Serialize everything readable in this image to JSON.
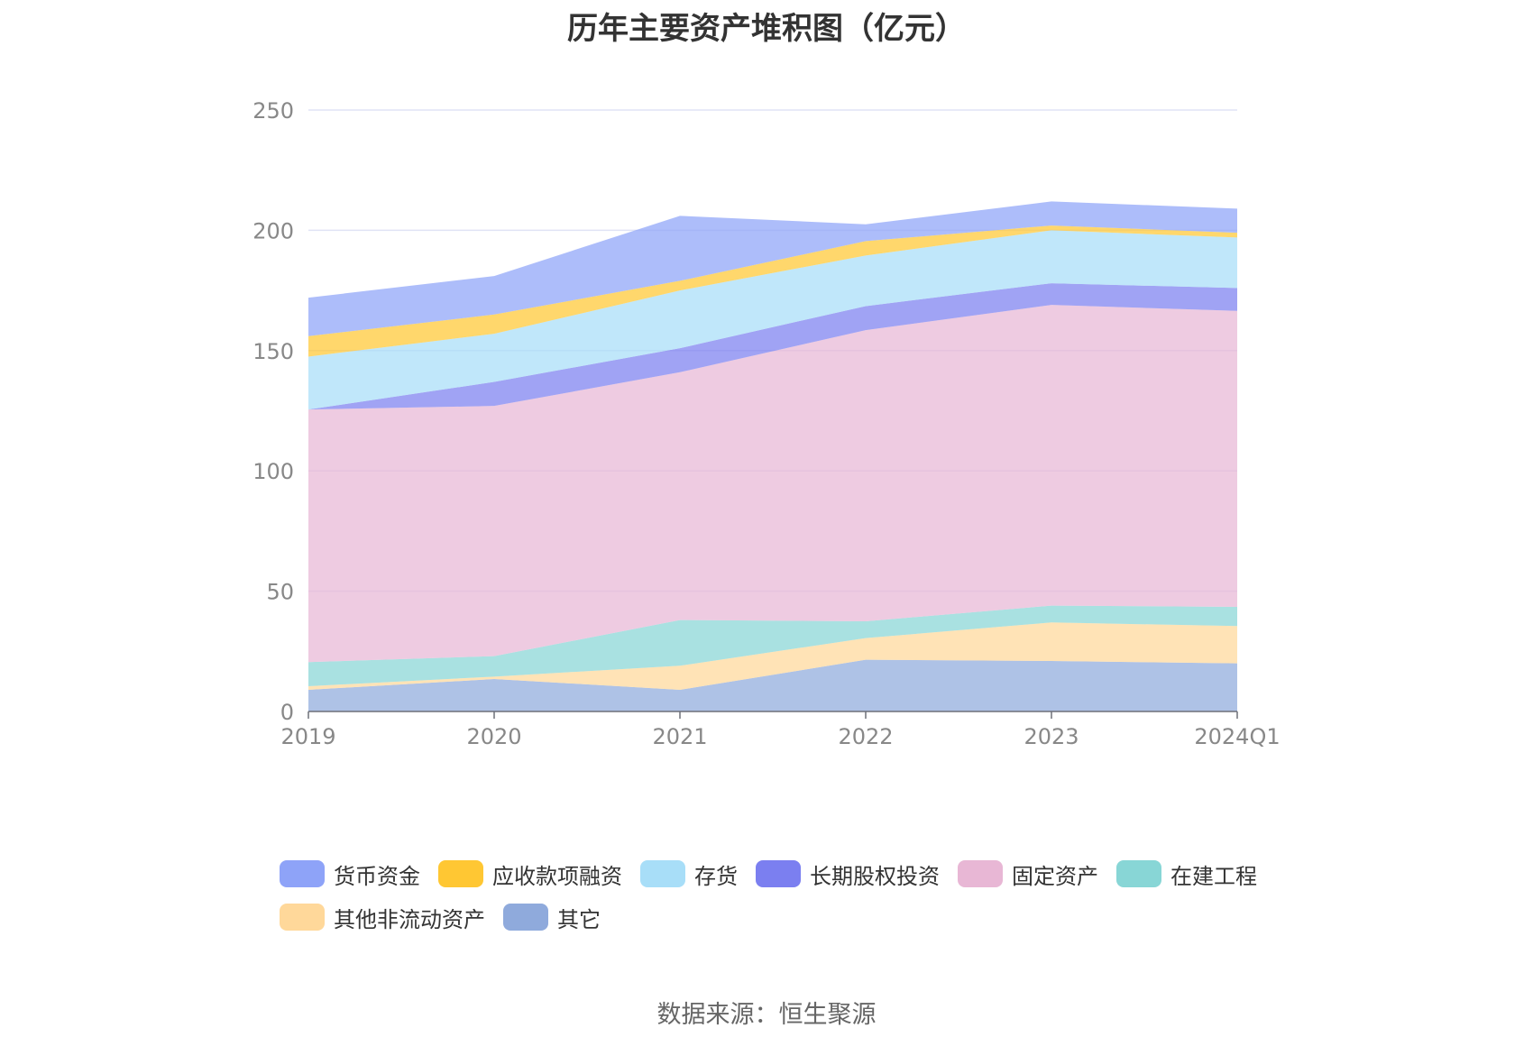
{
  "chart_data": {
    "type": "area",
    "stacked": true,
    "title": "历年主要资产堆积图（亿元）",
    "categories": [
      "2019",
      "2020",
      "2021",
      "2022",
      "2023",
      "2024Q1"
    ],
    "ylim": [
      0,
      250
    ],
    "yticks": [
      "0",
      "50",
      "100",
      "150",
      "200",
      "250"
    ],
    "grid": true,
    "legend_position": "bottom",
    "series": [
      {
        "name": "其它",
        "color": "#8faadc",
        "values": [
          9,
          13.5,
          9,
          21.5,
          21,
          20
        ]
      },
      {
        "name": "其他非流动资产",
        "color": "#ffd89a",
        "values": [
          1.5,
          1,
          10,
          9,
          16,
          15.5
        ]
      },
      {
        "name": "在建工程",
        "color": "#88d6d6",
        "values": [
          10,
          8.5,
          19,
          7,
          7,
          8
        ]
      },
      {
        "name": "固定资产",
        "color": "#e8b7d5",
        "values": [
          105,
          104,
          103,
          121,
          125,
          123
        ]
      },
      {
        "name": "长期股权投资",
        "color": "#7b7ff0",
        "values": [
          0,
          10,
          10,
          10,
          9,
          9.5
        ]
      },
      {
        "name": "存货",
        "color": "#a8def8",
        "values": [
          22,
          20,
          24,
          21,
          22,
          21
        ]
      },
      {
        "name": "应收款项融资",
        "color": "#ffc733",
        "values": [
          8.5,
          8,
          4,
          6,
          2,
          2
        ]
      },
      {
        "name": "货币资金",
        "color": "#8ea3f8",
        "values": [
          16,
          16,
          27,
          7,
          10,
          10
        ]
      }
    ]
  },
  "legend_order": [
    "货币资金",
    "应收款项融资",
    "存货",
    "长期股权投资",
    "固定资产",
    "在建工程",
    "其他非流动资产",
    "其它"
  ],
  "source": "数据来源：恒生聚源"
}
